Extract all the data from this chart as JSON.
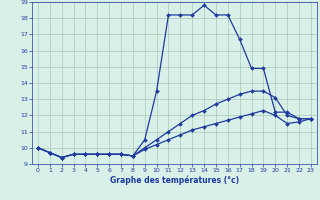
{
  "xlabel": "Graphe des températures (°c)",
  "hours": [
    0,
    1,
    2,
    3,
    4,
    5,
    6,
    7,
    8,
    9,
    10,
    11,
    12,
    13,
    14,
    15,
    16,
    17,
    18,
    19,
    20,
    21,
    22,
    23
  ],
  "line1": [
    10.0,
    9.7,
    9.4,
    9.6,
    9.6,
    9.6,
    9.6,
    9.6,
    9.5,
    10.5,
    13.5,
    18.2,
    18.2,
    18.2,
    18.8,
    18.2,
    18.2,
    16.7,
    14.9,
    14.9,
    12.2,
    12.2,
    11.8,
    11.8
  ],
  "line2": [
    10.0,
    9.7,
    9.4,
    9.6,
    9.6,
    9.6,
    9.6,
    9.6,
    9.5,
    10.0,
    10.5,
    11.0,
    11.5,
    12.0,
    12.3,
    12.7,
    13.0,
    13.3,
    13.5,
    13.5,
    13.1,
    12.0,
    11.8,
    11.8
  ],
  "line3": [
    10.0,
    9.7,
    9.4,
    9.6,
    9.6,
    9.6,
    9.6,
    9.6,
    9.5,
    9.9,
    10.2,
    10.5,
    10.8,
    11.1,
    11.3,
    11.5,
    11.7,
    11.9,
    12.1,
    12.3,
    12.0,
    11.5,
    11.6,
    11.8
  ],
  "line_color": "#1f3a9e",
  "bg_color": "#d8f0e8",
  "grid_color": "#a8c8b8",
  "ylim_min": 9,
  "ylim_max": 19,
  "yticks": [
    9,
    10,
    11,
    12,
    13,
    14,
    15,
    16,
    17,
    18,
    19
  ],
  "xticks": [
    0,
    1,
    2,
    3,
    4,
    5,
    6,
    7,
    8,
    9,
    10,
    11,
    12,
    13,
    14,
    15,
    16,
    17,
    18,
    19,
    20,
    21,
    22,
    23
  ]
}
